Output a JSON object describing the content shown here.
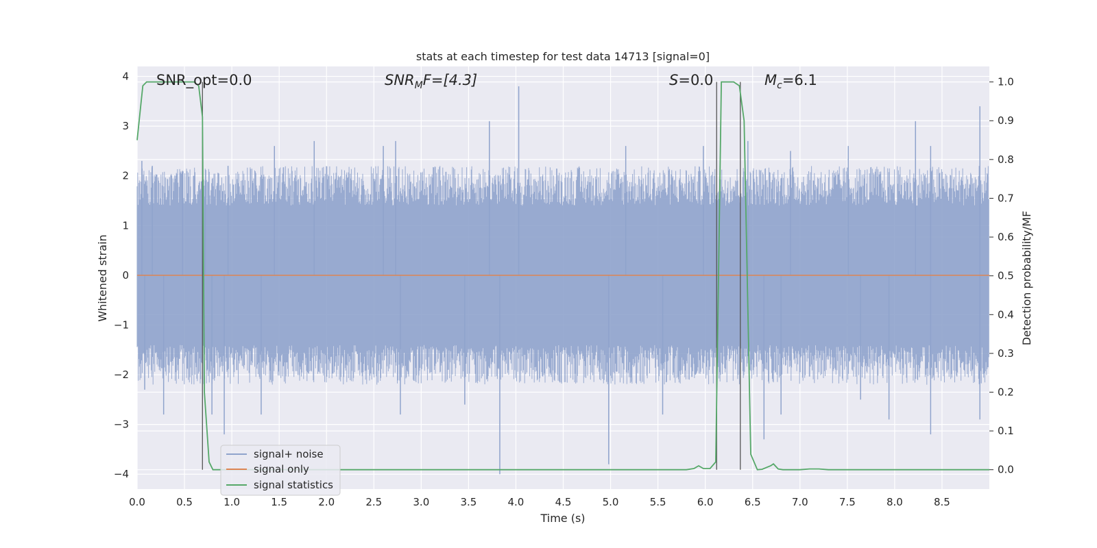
{
  "chart_data": {
    "type": "line",
    "title": "stats at each timestep for test data 14713 [signal=0]",
    "xlabel": "Time (s)",
    "ylabel": "Whitened strain",
    "y2label": "Detection probability/MF",
    "xlim": [
      0.0,
      9.0
    ],
    "ylim": [
      -4.3,
      4.2
    ],
    "y2lim": [
      -0.05,
      1.04
    ],
    "xticks": [
      "0.0",
      "0.5",
      "1.0",
      "1.5",
      "2.0",
      "2.5",
      "3.0",
      "3.5",
      "4.0",
      "4.5",
      "5.0",
      "5.5",
      "6.0",
      "6.5",
      "7.0",
      "7.5",
      "8.0",
      "8.5"
    ],
    "xtick_values": [
      0.0,
      0.5,
      1.0,
      1.5,
      2.0,
      2.5,
      3.0,
      3.5,
      4.0,
      4.5,
      5.0,
      5.5,
      6.0,
      6.5,
      7.0,
      7.5,
      8.0,
      8.5
    ],
    "yticks": [
      "−4",
      "−3",
      "−2",
      "−1",
      "0",
      "1",
      "2",
      "3",
      "4"
    ],
    "ytick_values": [
      -4,
      -3,
      -2,
      -1,
      0,
      1,
      2,
      3,
      4
    ],
    "y2ticks": [
      "0.0",
      "0.1",
      "0.2",
      "0.3",
      "0.4",
      "0.5",
      "0.6",
      "0.7",
      "0.8",
      "0.9",
      "1.0"
    ],
    "y2tick_values": [
      0.0,
      0.1,
      0.2,
      0.3,
      0.4,
      0.5,
      0.6,
      0.7,
      0.8,
      0.9,
      1.0
    ],
    "grid": true,
    "legend_position": "bottom-left",
    "colors": {
      "background": "#eaeaf2",
      "grid": "#ffffff",
      "noise": "#8fa3cc",
      "signal_only": "#dd8452",
      "statistics": "#55a868",
      "marker_lines": "#555555"
    },
    "series": [
      {
        "name": "signal+ noise",
        "note_kind": "noise",
        "peaks_high": [
          [
            0.05,
            2.3
          ],
          [
            0.16,
            2.2
          ],
          [
            0.48,
            2.1
          ],
          [
            0.72,
            1.9
          ],
          [
            0.96,
            2.2
          ],
          [
            1.45,
            2.6
          ],
          [
            1.87,
            2.7
          ],
          [
            2.6,
            2.6
          ],
          [
            2.73,
            2.7
          ],
          [
            3.72,
            3.1
          ],
          [
            4.03,
            3.8
          ],
          [
            5.16,
            2.6
          ],
          [
            5.98,
            2.6
          ],
          [
            6.45,
            2.7
          ],
          [
            6.9,
            2.5
          ],
          [
            7.51,
            2.6
          ],
          [
            8.22,
            3.1
          ],
          [
            8.38,
            2.6
          ],
          [
            8.9,
            3.4
          ]
        ],
        "peaks_low": [
          [
            0.08,
            -2.3
          ],
          [
            0.28,
            -2.8
          ],
          [
            0.79,
            -2.8
          ],
          [
            0.92,
            -3.2
          ],
          [
            1.31,
            -2.8
          ],
          [
            2.78,
            -2.8
          ],
          [
            3.46,
            -2.6
          ],
          [
            3.83,
            -4.0
          ],
          [
            4.98,
            -3.8
          ],
          [
            5.55,
            -2.8
          ],
          [
            6.62,
            -3.3
          ],
          [
            6.8,
            -2.8
          ],
          [
            7.64,
            -2.5
          ],
          [
            7.94,
            -2.9
          ],
          [
            8.38,
            -3.2
          ],
          [
            8.9,
            -2.9
          ]
        ]
      },
      {
        "name": "signal only",
        "x": [
          0.0,
          9.0
        ],
        "y": [
          0.0,
          0.0
        ]
      },
      {
        "name": "signal statistics",
        "axis": "right",
        "x": [
          0.0,
          0.06,
          0.1,
          0.3,
          0.5,
          0.6,
          0.65,
          0.69,
          0.71,
          0.76,
          0.8,
          1.0,
          2.0,
          3.0,
          4.0,
          5.0,
          5.8,
          5.88,
          5.93,
          5.98,
          6.05,
          6.11,
          6.14,
          6.17,
          6.22,
          6.3,
          6.36,
          6.41,
          6.48,
          6.55,
          6.6,
          6.69,
          6.72,
          6.77,
          6.82,
          7.0,
          7.1,
          7.2,
          7.3,
          8.0,
          9.0
        ],
        "y": [
          0.85,
          0.99,
          1.0,
          1.0,
          1.0,
          1.0,
          0.99,
          0.91,
          0.2,
          0.02,
          0.0,
          0.0,
          0.0,
          0.0,
          0.0,
          0.0,
          0.0,
          0.003,
          0.01,
          0.003,
          0.003,
          0.02,
          0.5,
          1.0,
          1.0,
          1.0,
          0.99,
          0.9,
          0.04,
          0.0,
          0.001,
          0.01,
          0.015,
          0.002,
          0.0,
          0.0,
          0.002,
          0.002,
          0.0,
          0.0,
          0.0
        ]
      }
    ],
    "vlines": [
      0.69,
      6.12,
      6.37
    ],
    "annotations": {
      "snr_opt": "SNR_opt=0.0",
      "snr_mf_main": "SNR",
      "snr_mf_sub": "M",
      "snr_mf_rest": "F=[4.3]",
      "s_main": "S",
      "s_rest": "=0.0",
      "mc_main": "M",
      "mc_sub": "c",
      "mc_rest": "=6.1"
    }
  }
}
